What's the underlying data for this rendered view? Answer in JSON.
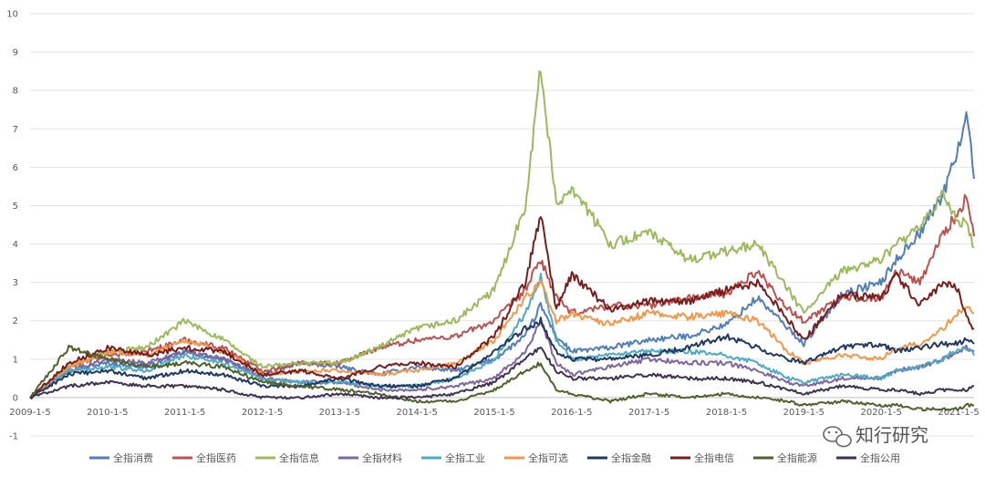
{
  "chart_data": {
    "type": "line",
    "ylim": [
      -1,
      10
    ],
    "y_ticks": [
      -1,
      0,
      1,
      2,
      3,
      4,
      5,
      6,
      7,
      8,
      9,
      10
    ],
    "x_tick_labels": [
      "2009-1-5",
      "2010-1-5",
      "2011-1-5",
      "2012-1-5",
      "2013-1-5",
      "2014-1-5",
      "2015-1-5",
      "2016-1-5",
      "2017-1-5",
      "2018-1-5",
      "2019-1-5",
      "2020-1-5",
      "2021-1-5"
    ],
    "x_tick_years": [
      2009,
      2010,
      2011,
      2012,
      2013,
      2014,
      2015,
      2016,
      2017,
      2018,
      2019,
      2020,
      2021
    ],
    "x_range": [
      2009.0,
      2021.2
    ],
    "grid": "horizontal",
    "legend_position": "bottom",
    "series": [
      {
        "name": "全指消费",
        "color": "#4e7ebd",
        "x": [
          2009.0,
          2009.5,
          2010.0,
          2010.5,
          2011.0,
          2011.5,
          2012.0,
          2012.5,
          2013.0,
          2013.5,
          2014.0,
          2014.5,
          2015.0,
          2015.4,
          2015.6,
          2015.8,
          2016.0,
          2016.5,
          2017.0,
          2017.5,
          2018.0,
          2018.4,
          2018.8,
          2019.0,
          2019.5,
          2020.0,
          2020.2,
          2020.5,
          2020.8,
          2021.0,
          2021.1,
          2021.2
        ],
        "values": [
          0,
          0.7,
          0.9,
          0.8,
          1.2,
          1.0,
          0.6,
          0.9,
          0.8,
          0.6,
          0.8,
          0.7,
          1.0,
          1.6,
          2.4,
          1.6,
          1.2,
          1.3,
          1.5,
          1.6,
          1.9,
          2.6,
          1.8,
          1.4,
          2.7,
          3.0,
          3.6,
          4.3,
          5.3,
          6.5,
          7.5,
          5.7
        ]
      },
      {
        "name": "全指医药",
        "color": "#c0504d",
        "x": [
          2009.0,
          2009.5,
          2010.0,
          2010.5,
          2011.0,
          2011.5,
          2012.0,
          2012.5,
          2013.0,
          2013.5,
          2014.0,
          2014.5,
          2015.0,
          2015.4,
          2015.6,
          2015.8,
          2016.0,
          2016.5,
          2017.0,
          2017.5,
          2018.0,
          2018.4,
          2018.8,
          2019.0,
          2019.5,
          2020.0,
          2020.2,
          2020.5,
          2020.8,
          2021.0,
          2021.1,
          2021.2
        ],
        "values": [
          0,
          0.8,
          1.1,
          1.2,
          1.5,
          1.3,
          0.7,
          0.9,
          0.9,
          1.3,
          1.5,
          1.6,
          2.0,
          2.8,
          3.6,
          2.6,
          2.2,
          2.4,
          2.4,
          2.6,
          2.7,
          3.3,
          2.3,
          2.0,
          2.6,
          2.6,
          3.3,
          3.0,
          4.3,
          4.8,
          5.2,
          4.2
        ]
      },
      {
        "name": "全指信息",
        "color": "#9bbb59",
        "x": [
          2009.0,
          2009.5,
          2010.0,
          2010.5,
          2011.0,
          2011.5,
          2012.0,
          2012.5,
          2013.0,
          2013.5,
          2014.0,
          2014.5,
          2015.0,
          2015.4,
          2015.6,
          2015.8,
          2016.0,
          2016.5,
          2017.0,
          2017.5,
          2018.0,
          2018.4,
          2018.8,
          2019.0,
          2019.5,
          2020.0,
          2020.2,
          2020.5,
          2020.8,
          2021.0,
          2021.1,
          2021.2
        ],
        "values": [
          0,
          0.8,
          1.2,
          1.3,
          2.0,
          1.5,
          0.8,
          0.9,
          0.9,
          1.3,
          1.8,
          2.0,
          2.8,
          5.0,
          8.6,
          5.0,
          5.5,
          4.0,
          4.3,
          3.6,
          3.8,
          4.0,
          2.8,
          2.2,
          3.3,
          3.6,
          4.0,
          4.4,
          5.3,
          4.6,
          4.5,
          3.9
        ]
      },
      {
        "name": "全指材料",
        "color": "#8064a2",
        "x": [
          2009.0,
          2009.5,
          2010.0,
          2010.5,
          2011.0,
          2011.5,
          2012.0,
          2012.5,
          2013.0,
          2013.5,
          2014.0,
          2014.5,
          2015.0,
          2015.4,
          2015.6,
          2015.8,
          2016.0,
          2016.5,
          2017.0,
          2017.5,
          2018.0,
          2018.4,
          2018.8,
          2019.0,
          2019.5,
          2020.0,
          2020.2,
          2020.5,
          2020.8,
          2021.0,
          2021.1,
          2021.2
        ],
        "values": [
          0,
          0.7,
          1.0,
          0.9,
          1.2,
          1.0,
          0.5,
          0.4,
          0.4,
          0.2,
          0.2,
          0.3,
          0.5,
          1.2,
          2.0,
          0.9,
          0.6,
          0.8,
          1.0,
          0.9,
          0.9,
          0.7,
          0.4,
          0.3,
          0.5,
          0.5,
          0.7,
          0.8,
          1.0,
          1.2,
          1.3,
          1.2
        ]
      },
      {
        "name": "全指工业",
        "color": "#4bacc6",
        "x": [
          2009.0,
          2009.5,
          2010.0,
          2010.5,
          2011.0,
          2011.5,
          2012.0,
          2012.5,
          2013.0,
          2013.5,
          2014.0,
          2014.5,
          2015.0,
          2015.4,
          2015.6,
          2015.8,
          2016.0,
          2016.5,
          2017.0,
          2017.5,
          2018.0,
          2018.4,
          2018.8,
          2019.0,
          2019.5,
          2020.0,
          2020.2,
          2020.5,
          2020.8,
          2021.0,
          2021.1,
          2021.2
        ],
        "values": [
          0,
          0.7,
          0.8,
          0.7,
          1.1,
          0.9,
          0.5,
          0.4,
          0.4,
          0.3,
          0.3,
          0.5,
          1.0,
          2.2,
          3.2,
          1.5,
          1.0,
          1.1,
          1.2,
          1.2,
          1.1,
          0.9,
          0.5,
          0.4,
          0.6,
          0.5,
          0.7,
          0.8,
          1.0,
          1.3,
          1.3,
          1.1
        ]
      },
      {
        "name": "全指可选",
        "color": "#f79646",
        "x": [
          2009.0,
          2009.5,
          2010.0,
          2010.5,
          2011.0,
          2011.5,
          2012.0,
          2012.5,
          2013.0,
          2013.5,
          2014.0,
          2014.5,
          2015.0,
          2015.4,
          2015.6,
          2015.8,
          2016.0,
          2016.5,
          2017.0,
          2017.5,
          2018.0,
          2018.4,
          2018.8,
          2019.0,
          2019.5,
          2020.0,
          2020.2,
          2020.5,
          2020.8,
          2021.0,
          2021.1,
          2021.2
        ],
        "values": [
          0,
          0.8,
          1.2,
          1.1,
          1.5,
          1.2,
          0.6,
          0.7,
          0.7,
          0.6,
          0.7,
          0.9,
          1.5,
          2.6,
          3.0,
          2.0,
          2.2,
          1.9,
          2.2,
          2.1,
          2.2,
          2.0,
          1.2,
          0.9,
          1.1,
          1.0,
          1.3,
          1.4,
          1.8,
          2.2,
          2.4,
          2.2
        ]
      },
      {
        "name": "全指金融",
        "color": "#1f3864",
        "x": [
          2009.0,
          2009.5,
          2010.0,
          2010.5,
          2011.0,
          2011.5,
          2012.0,
          2012.5,
          2013.0,
          2013.5,
          2014.0,
          2014.5,
          2015.0,
          2015.4,
          2015.6,
          2015.8,
          2016.0,
          2016.5,
          2017.0,
          2017.5,
          2018.0,
          2018.4,
          2018.8,
          2019.0,
          2019.5,
          2020.0,
          2020.2,
          2020.5,
          2020.8,
          2021.0,
          2021.1,
          2021.2
        ],
        "values": [
          0,
          0.6,
          0.7,
          0.5,
          0.7,
          0.6,
          0.3,
          0.3,
          0.5,
          0.3,
          0.3,
          0.5,
          1.2,
          1.8,
          2.0,
          1.2,
          1.0,
          1.0,
          1.1,
          1.3,
          1.6,
          1.3,
          1.0,
          0.9,
          1.3,
          1.4,
          1.2,
          1.3,
          1.4,
          1.4,
          1.5,
          1.4
        ]
      },
      {
        "name": "全指电信",
        "color": "#7b1c1c",
        "x": [
          2009.0,
          2009.5,
          2010.0,
          2010.5,
          2011.0,
          2011.5,
          2012.0,
          2012.5,
          2013.0,
          2013.5,
          2014.0,
          2014.5,
          2015.0,
          2015.4,
          2015.6,
          2015.8,
          2016.0,
          2016.5,
          2017.0,
          2017.5,
          2018.0,
          2018.4,
          2018.8,
          2019.0,
          2019.5,
          2020.0,
          2020.2,
          2020.5,
          2020.8,
          2021.0,
          2021.1,
          2021.2
        ],
        "values": [
          0,
          0.9,
          1.3,
          1.1,
          1.3,
          1.2,
          0.6,
          0.7,
          0.5,
          0.8,
          0.9,
          0.8,
          1.6,
          3.0,
          4.8,
          2.3,
          3.2,
          2.3,
          2.5,
          2.5,
          2.8,
          3.0,
          2.0,
          1.5,
          2.7,
          2.6,
          3.2,
          2.4,
          3.0,
          2.8,
          2.1,
          1.8
        ]
      },
      {
        "name": "全指能源",
        "color": "#4f6228",
        "x": [
          2009.0,
          2009.5,
          2010.0,
          2010.5,
          2011.0,
          2011.5,
          2012.0,
          2012.5,
          2013.0,
          2013.5,
          2014.0,
          2014.5,
          2015.0,
          2015.4,
          2015.6,
          2015.8,
          2016.0,
          2016.5,
          2017.0,
          2017.5,
          2018.0,
          2018.4,
          2018.8,
          2019.0,
          2019.5,
          2020.0,
          2020.2,
          2020.5,
          2020.8,
          2021.0,
          2021.1,
          2021.2
        ],
        "values": [
          0,
          1.3,
          1.0,
          0.8,
          0.9,
          0.8,
          0.4,
          0.3,
          0.2,
          0.1,
          -0.1,
          -0.1,
          0.2,
          0.7,
          0.9,
          0.2,
          0.1,
          -0.1,
          0.1,
          0.0,
          0.1,
          0.0,
          -0.1,
          -0.2,
          -0.1,
          -0.2,
          -0.2,
          -0.3,
          -0.3,
          -0.3,
          -0.2,
          -0.2
        ]
      },
      {
        "name": "全指公用",
        "color": "#403152",
        "x": [
          2009.0,
          2009.5,
          2010.0,
          2010.5,
          2011.0,
          2011.5,
          2012.0,
          2012.5,
          2013.0,
          2013.5,
          2014.0,
          2014.5,
          2015.0,
          2015.4,
          2015.6,
          2015.8,
          2016.0,
          2016.5,
          2017.0,
          2017.5,
          2018.0,
          2018.4,
          2018.8,
          2019.0,
          2019.5,
          2020.0,
          2020.2,
          2020.5,
          2020.8,
          2021.0,
          2021.1,
          2021.2
        ],
        "values": [
          0,
          0.3,
          0.4,
          0.3,
          0.3,
          0.2,
          0.0,
          0.0,
          0.1,
          0.0,
          0.0,
          0.1,
          0.4,
          1.0,
          1.3,
          0.7,
          0.5,
          0.5,
          0.6,
          0.5,
          0.5,
          0.4,
          0.2,
          0.1,
          0.3,
          0.2,
          0.2,
          0.1,
          0.2,
          0.2,
          0.2,
          0.3
        ]
      }
    ]
  },
  "watermark": {
    "text": "知行研究",
    "icon": "wechat-icon"
  }
}
